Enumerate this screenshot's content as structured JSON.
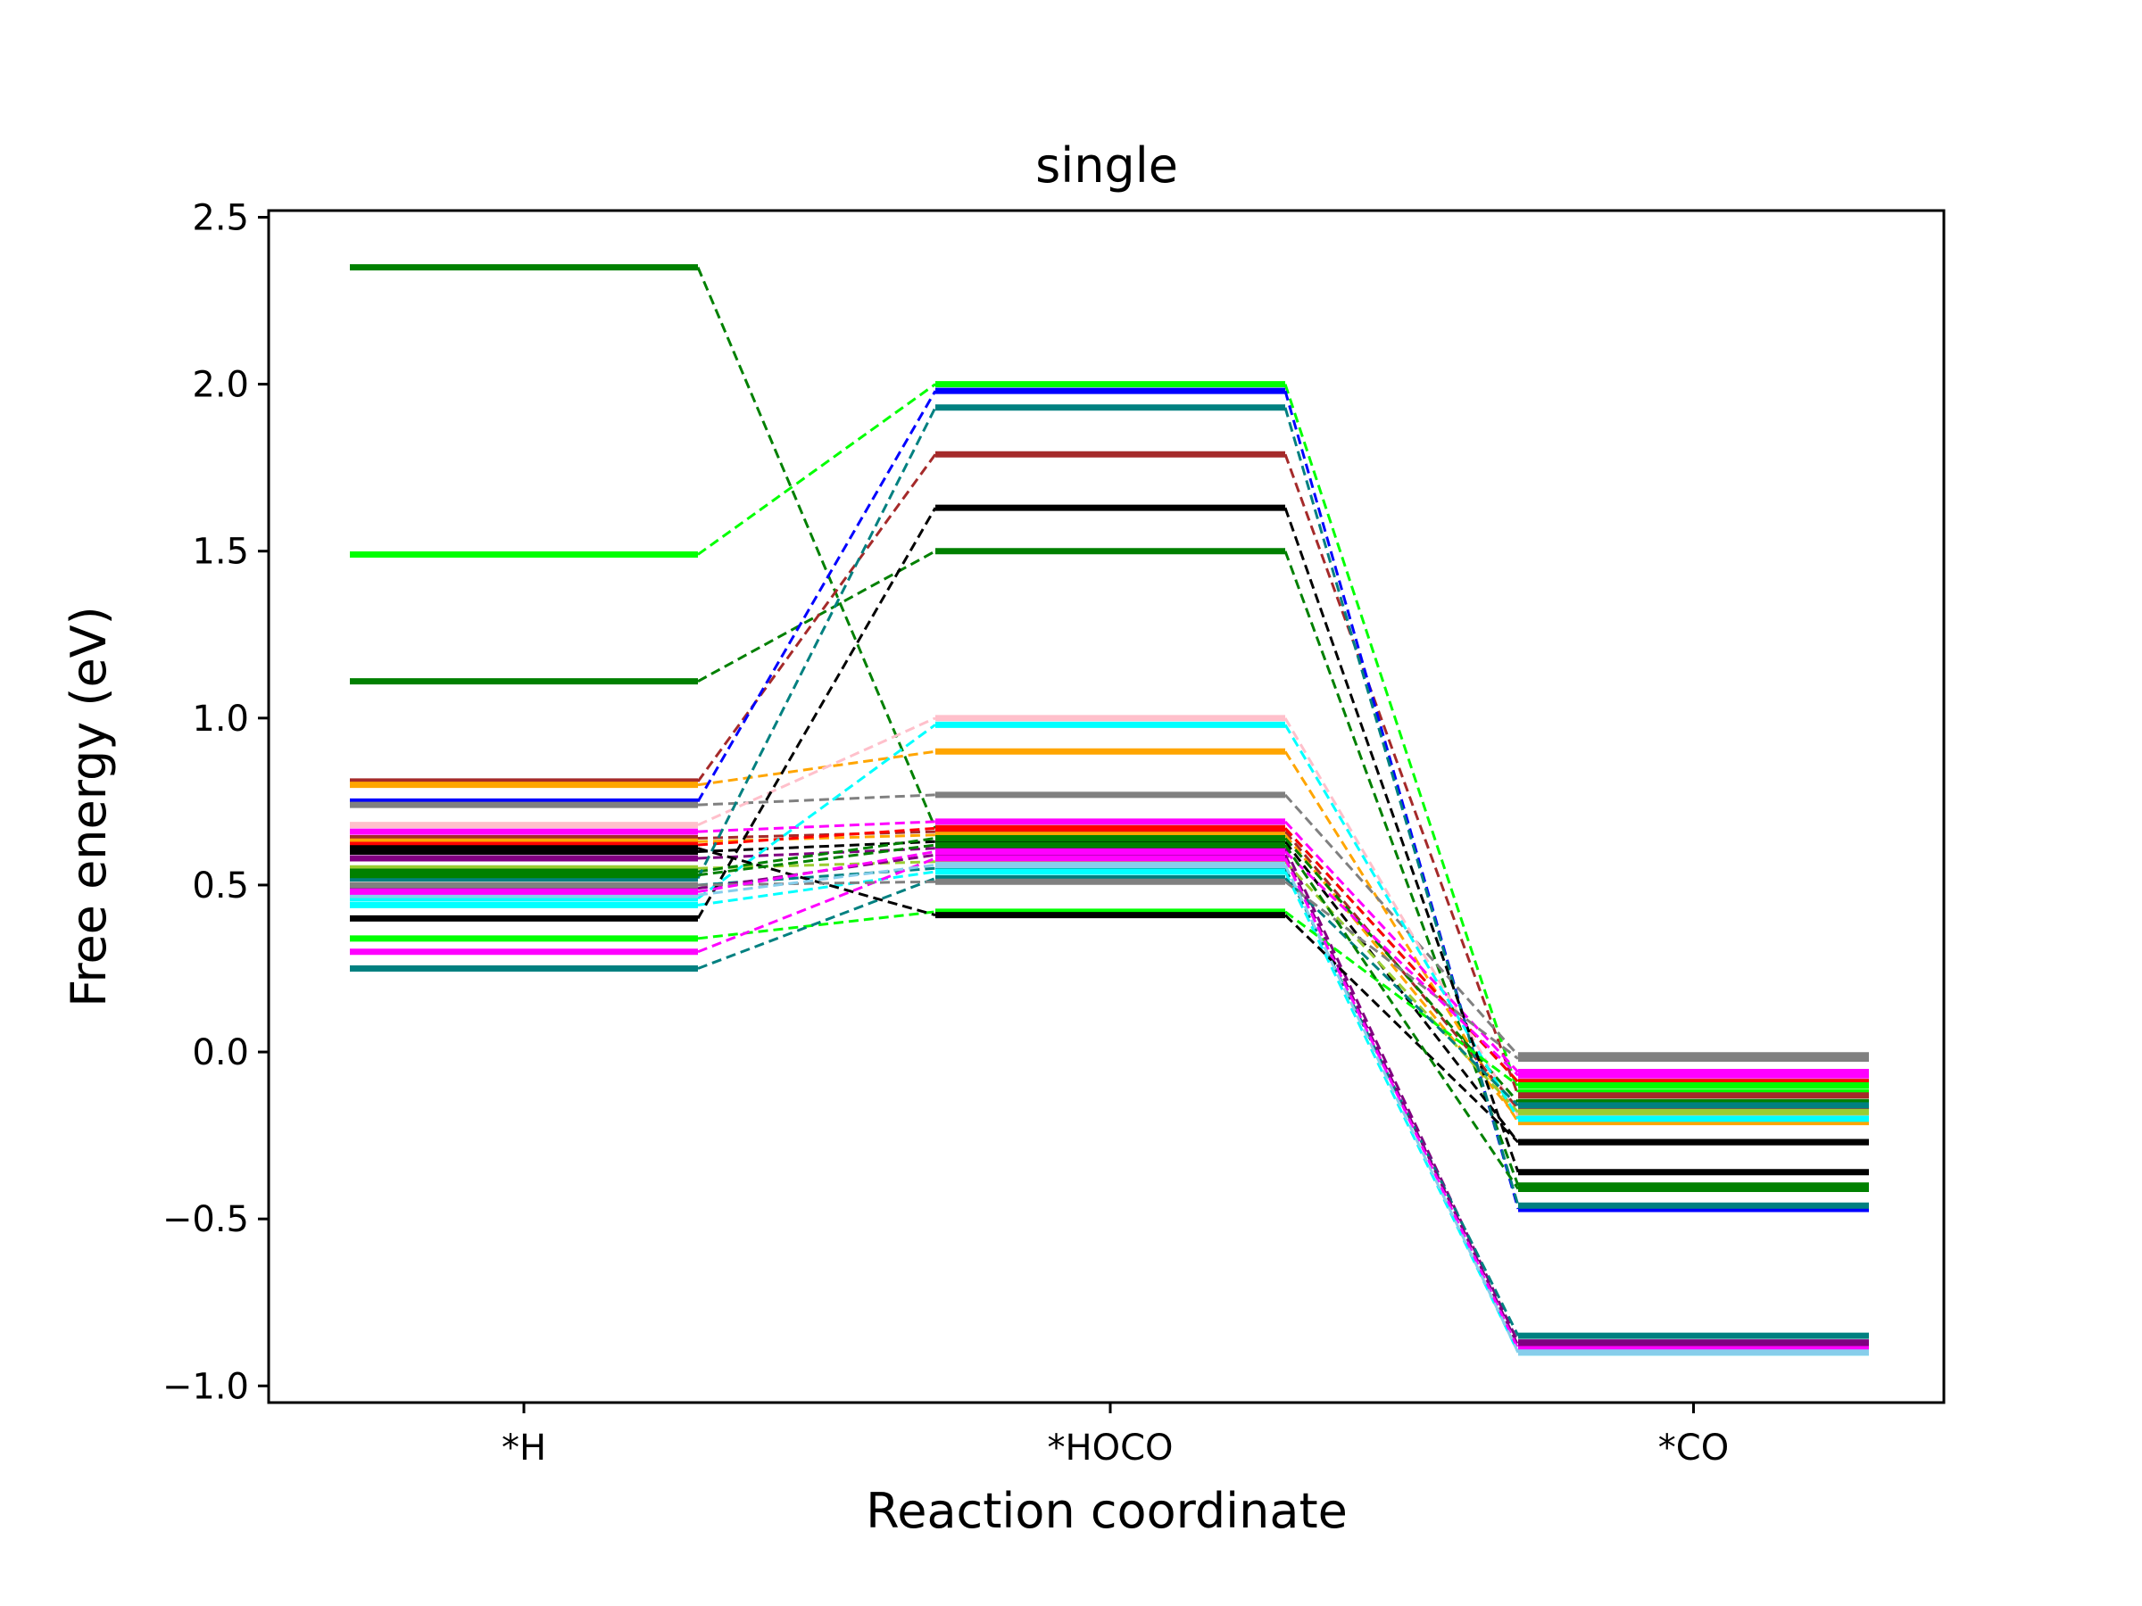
{
  "chart_data": {
    "type": "line",
    "title": "single",
    "xlabel": "Reaction coordinate",
    "ylabel": "Free energy (eV)",
    "categories": [
      "*H",
      "*HOCO",
      "*CO"
    ],
    "ylim": [
      -1.05,
      2.52
    ],
    "yticks": [
      -1.0,
      -0.5,
      0.0,
      0.5,
      1.0,
      1.5,
      2.0,
      2.5
    ],
    "ytick_labels": [
      "−1.0",
      "−0.5",
      "0.0",
      "0.5",
      "1.0",
      "1.5",
      "2.0",
      "2.5"
    ],
    "grid": false,
    "legend": "none",
    "series": [
      {
        "color": "#008000",
        "values": [
          2.35,
          0.67,
          -0.09
        ]
      },
      {
        "color": "#00ff00",
        "values": [
          1.49,
          2.0,
          -0.12
        ]
      },
      {
        "color": "#008000",
        "values": [
          1.11,
          1.5,
          -0.4
        ]
      },
      {
        "color": "#a52a2a",
        "values": [
          0.81,
          1.79,
          -0.13
        ]
      },
      {
        "color": "#ffa500",
        "values": [
          0.8,
          0.9,
          -0.21
        ]
      },
      {
        "color": "#0000ff",
        "values": [
          0.75,
          1.98,
          -0.47
        ]
      },
      {
        "color": "#808080",
        "values": [
          0.74,
          0.77,
          -0.01
        ]
      },
      {
        "color": "#ffc0cb",
        "values": [
          0.68,
          1.0,
          -0.19
        ]
      },
      {
        "color": "#ff00ff",
        "values": [
          0.66,
          0.69,
          -0.06
        ]
      },
      {
        "color": "#a52a2a",
        "values": [
          0.64,
          0.66,
          -0.17
        ]
      },
      {
        "color": "#ffa500",
        "values": [
          0.63,
          0.65,
          -0.2
        ]
      },
      {
        "color": "#ff0000",
        "values": [
          0.62,
          0.67,
          -0.09
        ]
      },
      {
        "color": "#000000",
        "values": [
          0.6,
          0.63,
          -0.27
        ]
      },
      {
        "color": "#800080",
        "values": [
          0.58,
          0.61,
          -0.87
        ]
      },
      {
        "color": "#9acd32",
        "values": [
          0.55,
          0.57,
          -0.18
        ]
      },
      {
        "color": "#008000",
        "values": [
          0.54,
          0.64,
          -0.15
        ]
      },
      {
        "color": "#008080",
        "values": [
          0.52,
          1.93,
          -0.46
        ]
      },
      {
        "color": "#008080",
        "values": [
          0.5,
          0.55,
          -0.85
        ]
      },
      {
        "color": "#800080",
        "values": [
          0.49,
          0.59,
          -0.88
        ]
      },
      {
        "color": "#00ffff",
        "values": [
          0.46,
          0.98,
          -0.2
        ]
      },
      {
        "color": "#00ffff",
        "values": [
          0.44,
          0.54,
          -0.9
        ]
      },
      {
        "color": "#000000",
        "values": [
          0.4,
          1.63,
          -0.36
        ]
      },
      {
        "color": "#00ff00",
        "values": [
          0.34,
          0.42,
          -0.1
        ]
      },
      {
        "color": "#ff00ff",
        "values": [
          0.3,
          0.58,
          -0.89
        ]
      },
      {
        "color": "#008080",
        "values": [
          0.25,
          0.52,
          -0.16
        ]
      },
      {
        "color": "#000000",
        "values": [
          0.61,
          0.41,
          -0.27
        ]
      },
      {
        "color": "#808080",
        "values": [
          0.5,
          0.51,
          -0.02
        ]
      },
      {
        "color": "#87ceeb",
        "values": [
          0.47,
          0.56,
          -0.9
        ]
      },
      {
        "color": "#ff00ff",
        "values": [
          0.48,
          0.6,
          -0.07
        ]
      },
      {
        "color": "#008000",
        "values": [
          0.53,
          0.62,
          -0.41
        ]
      }
    ]
  }
}
